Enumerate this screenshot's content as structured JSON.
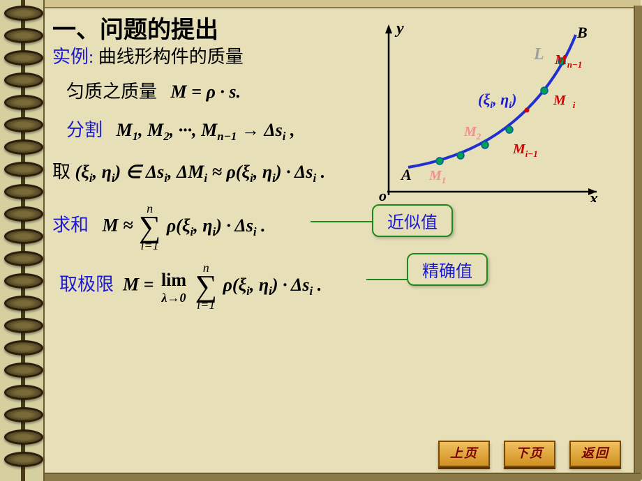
{
  "title": "一、问题的提出",
  "l1_label": "实例:",
  "l1_text": "曲线形构件的质量",
  "l2_text": "匀质之质量",
  "l2_formula": "M = ρ · s.",
  "l3_label": "分割",
  "l3_formula_a": "M",
  "l3_formula_rest": ", M",
  "l3_formula_dots": ", ···, M",
  "l3_arrow": " → Δs",
  "l3_sub1": "1",
  "l3_sub2": "2",
  "l3_subn1": "n−1",
  "l3_subi": "i",
  "l4_take": "取",
  "l4_in": "(ξ",
  "l4_eta": ", η",
  "l4_close": ") ∈ Δs",
  "l4_tail": ",  ΔM",
  "l4_approx": " ≈ ρ(ξ",
  "l4_eta2": ", η",
  "l4_ds": ") · Δs",
  "l4_period": " .",
  "l5_label": "求和",
  "l5_M": "M ≈ ",
  "sum_top": "n",
  "sum_bot": "i=1",
  "l5_body": "ρ(ξ",
  "l5_eta": ", η",
  "l5_ds": ") · Δs",
  "l5_period": " .",
  "l6_label": "取极限",
  "l6_M": "M = ",
  "lim_top": "lim",
  "lim_bot": "λ→0",
  "l6_body": "ρ(ξ",
  "l6_eta": ", η",
  "l6_ds": ") · Δs",
  "l6_period": " .",
  "callout1": "近似值",
  "callout2": "精确值",
  "graph": {
    "y_label": "y",
    "x_label": "x",
    "o_label": "o",
    "A": "A",
    "B": "B",
    "L": "L",
    "xi_eta": "(ξ",
    "xi_eta2": ", η",
    "xi_eta3": ")",
    "Mi": "M",
    "Mi_sub": "i",
    "Mn1": "M",
    "Mn1_sub": "n−1",
    "Mim1": "M",
    "Mim1_sub": "i−1",
    "M1": "M",
    "M1_sub": "1",
    "M2": "M",
    "M2_sub": "2",
    "colors": {
      "axis": "#000000",
      "curve": "#2020cc",
      "point_fill": "#00a050",
      "point_stroke": "#0060a0",
      "label_bold": "#000000",
      "L_color": "#888888",
      "M_red": "#d40000",
      "M_pink": "#f09090",
      "xi_blue": "#1a1ad4",
      "xi_dot": "#d40000"
    }
  },
  "nav": {
    "prev": "上页",
    "next": "下页",
    "back": "返回"
  }
}
